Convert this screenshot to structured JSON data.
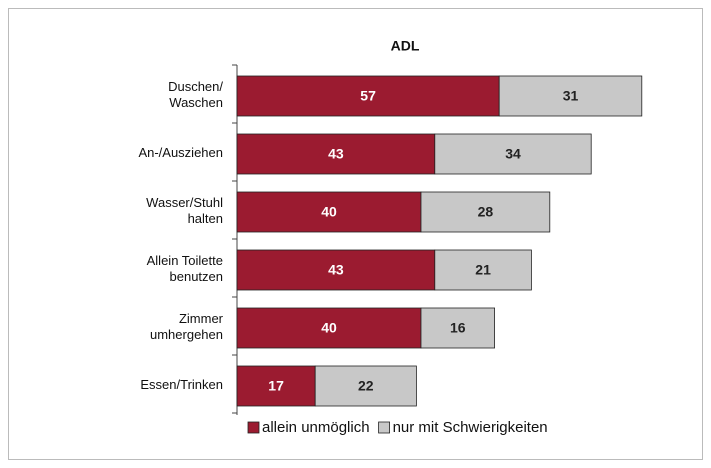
{
  "chart_data": {
    "type": "stacked_bar_horizontal",
    "title": "ADL",
    "categories": [
      "Duschen/\nWaschen",
      "An-/Ausziehen",
      "Wasser/Stuhl\nhalten",
      "Allein Toilette\nbenutzen",
      "Zimmer\numhergehen",
      "Essen/Trinken"
    ],
    "series": [
      {
        "name": "allein unmöglich",
        "color": "#9b1b30",
        "values": [
          57,
          43,
          40,
          43,
          40,
          17
        ]
      },
      {
        "name": "nur mit Schwierigkeiten",
        "color": "#c8c8c8",
        "values": [
          31,
          34,
          28,
          21,
          16,
          22
        ]
      }
    ],
    "xlim": [
      0,
      100
    ],
    "legend": "bottom"
  }
}
